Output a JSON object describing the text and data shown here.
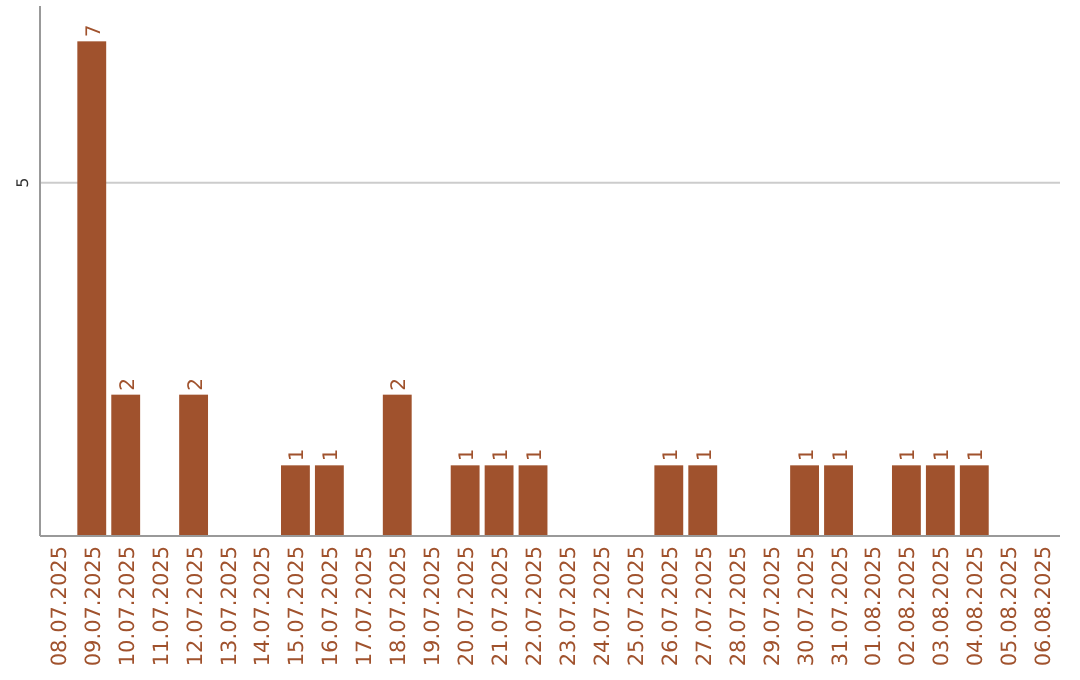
{
  "chart_data": {
    "type": "bar",
    "categories": [
      "08.07.2025",
      "09.07.2025",
      "10.07.2025",
      "11.07.2025",
      "12.07.2025",
      "13.07.2025",
      "14.07.2025",
      "15.07.2025",
      "16.07.2025",
      "17.07.2025",
      "18.07.2025",
      "19.07.2025",
      "20.07.2025",
      "21.07.2025",
      "22.07.2025",
      "23.07.2025",
      "24.07.2025",
      "25.07.2025",
      "26.07.2025",
      "27.07.2025",
      "28.07.2025",
      "29.07.2025",
      "30.07.2025",
      "31.07.2025",
      "01.08.2025",
      "02.08.2025",
      "03.08.2025",
      "04.08.2025",
      "05.08.2025",
      "06.08.2025"
    ],
    "values": [
      0,
      7,
      2,
      0,
      2,
      0,
      0,
      1,
      1,
      0,
      2,
      0,
      1,
      1,
      1,
      0,
      0,
      0,
      1,
      1,
      0,
      0,
      1,
      1,
      0,
      1,
      1,
      1,
      0,
      0
    ],
    "value_labels": [
      null,
      "7",
      "2",
      null,
      "2",
      null,
      null,
      "1",
      "1",
      null,
      "2",
      null,
      "1",
      "1",
      "1",
      null,
      null,
      null,
      "1",
      "1",
      null,
      null,
      "1",
      "1",
      null,
      "1",
      "1",
      "1",
      null,
      null
    ],
    "color": "#a0522d",
    "ylim": [
      0,
      7.5
    ],
    "yticks": [
      5
    ],
    "grid": "y"
  }
}
